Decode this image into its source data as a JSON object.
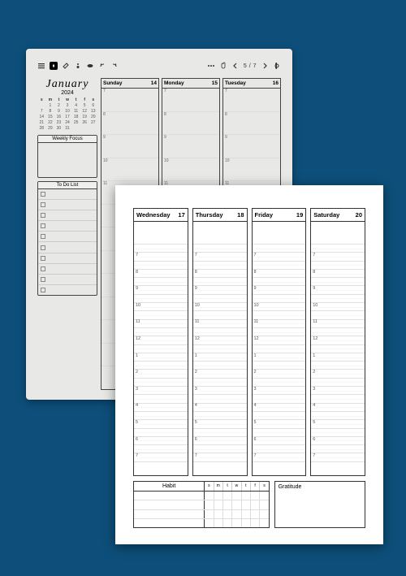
{
  "colors": {
    "background": "#0d4f7a",
    "tablet_bg": "#e8e8e6",
    "page_bg": "#ffffff",
    "border": "#333333",
    "line": "#e0e0e0"
  },
  "tablet": {
    "toolbar": {
      "page_indicator": "5 / 7",
      "icons": [
        "menu-icon",
        "pen-icon",
        "eraser-icon",
        "highlighter-icon",
        "more-shapes-icon",
        "undo-icon",
        "redo-icon",
        "options-icon",
        "hand-icon",
        "brightness-icon"
      ]
    },
    "month": {
      "title": "January",
      "year": "2024",
      "weekday_headers": [
        "s",
        "m",
        "t",
        "w",
        "t",
        "f",
        "s"
      ],
      "grid": [
        [
          "",
          "1",
          "2",
          "3",
          "4",
          "5",
          "6"
        ],
        [
          "7",
          "8",
          "9",
          "10",
          "11",
          "12",
          "13"
        ],
        [
          "14",
          "15",
          "16",
          "17",
          "18",
          "19",
          "20"
        ],
        [
          "21",
          "22",
          "23",
          "24",
          "25",
          "26",
          "27"
        ],
        [
          "28",
          "29",
          "30",
          "31",
          "",
          "",
          ""
        ]
      ]
    },
    "weekly_focus_label": "Weekly Focus",
    "todo_label": "To Do List",
    "todo_rows": 10,
    "day_columns": [
      {
        "name": "Sunday",
        "date": "14"
      },
      {
        "name": "Monday",
        "date": "15"
      },
      {
        "name": "Tuesday",
        "date": "16"
      }
    ],
    "hours": [
      "7",
      "8",
      "9",
      "10",
      "11"
    ]
  },
  "page": {
    "day_columns": [
      {
        "name": "Wednesday",
        "date": "17"
      },
      {
        "name": "Thursday",
        "date": "18"
      },
      {
        "name": "Friday",
        "date": "19"
      },
      {
        "name": "Saturday",
        "date": "20"
      }
    ],
    "hours": [
      "7",
      "8",
      "9",
      "10",
      "11",
      "12",
      "1",
      "2",
      "3",
      "4",
      "5",
      "6",
      "7"
    ],
    "habit": {
      "title": "Habit",
      "days": [
        "s",
        "m",
        "t",
        "w",
        "t",
        "f",
        "s"
      ],
      "rows": 4
    },
    "gratitude_label": "Gratitude"
  }
}
